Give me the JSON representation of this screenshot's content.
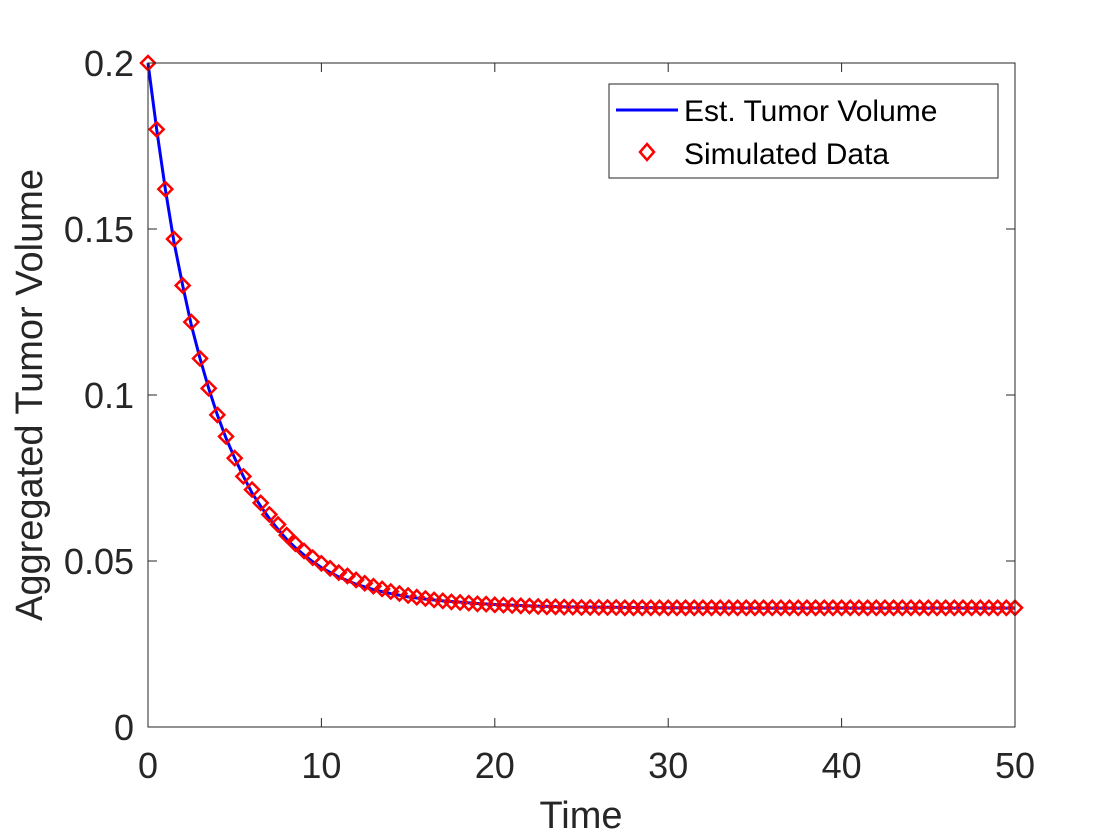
{
  "chart_data": {
    "type": "line",
    "title": "",
    "xlabel": "Time",
    "ylabel": "Aggregated Tumor Volume",
    "xlim": [
      0,
      50
    ],
    "ylim": [
      0,
      0.2
    ],
    "xticks": [
      0,
      10,
      20,
      30,
      40,
      50
    ],
    "yticks": [
      0,
      0.05,
      0.1,
      0.15,
      0.2
    ],
    "xtick_labels": [
      "0",
      "10",
      "20",
      "30",
      "40",
      "50"
    ],
    "ytick_labels": [
      "0",
      "0.05",
      "0.1",
      "0.15",
      "0.2"
    ],
    "grid": false,
    "legend_position": "top-right",
    "series": [
      {
        "name": "Est. Tumor Volume",
        "style": "line",
        "color": "#0000ff",
        "x": [
          0,
          0.5,
          1,
          1.5,
          2,
          2.5,
          3,
          3.5,
          4,
          4.5,
          5,
          5.5,
          6,
          6.5,
          7,
          7.5,
          8,
          8.5,
          9,
          9.5,
          10,
          11,
          12,
          13,
          14,
          15,
          16,
          17,
          18,
          19,
          20,
          22,
          24,
          26,
          28,
          30,
          35,
          40,
          45,
          50
        ],
        "y": [
          0.2,
          0.18,
          0.162,
          0.146,
          0.133,
          0.121,
          0.111,
          0.102,
          0.094,
          0.087,
          0.081,
          0.0755,
          0.0705,
          0.0665,
          0.0628,
          0.0595,
          0.0565,
          0.054,
          0.0518,
          0.0498,
          0.048,
          0.0452,
          0.043,
          0.0414,
          0.0402,
          0.0392,
          0.0385,
          0.038,
          0.0376,
          0.0372,
          0.0369,
          0.0365,
          0.0362,
          0.0361,
          0.036,
          0.0359,
          0.0358,
          0.0358,
          0.0358,
          0.0358
        ]
      },
      {
        "name": "Simulated Data",
        "style": "markers",
        "marker": "diamond",
        "color": "#ff0000",
        "x": [
          0,
          0.5,
          1,
          1.5,
          2,
          2.5,
          3,
          3.5,
          4,
          4.5,
          5,
          5.5,
          6,
          6.5,
          7,
          7.5,
          8,
          8.5,
          9,
          9.5,
          10,
          10.5,
          11,
          11.5,
          12,
          12.5,
          13,
          13.5,
          14,
          14.5,
          15,
          15.5,
          16,
          16.5,
          17,
          17.5,
          18,
          18.5,
          19,
          19.5,
          20,
          20.5,
          21,
          21.5,
          22,
          22.5,
          23,
          23.5,
          24,
          24.5,
          25,
          25.5,
          26,
          26.5,
          27,
          27.5,
          28,
          28.5,
          29,
          29.5,
          30,
          30.5,
          31,
          31.5,
          32,
          32.5,
          33,
          33.5,
          34,
          34.5,
          35,
          35.5,
          36,
          36.5,
          37,
          37.5,
          38,
          38.5,
          39,
          39.5,
          40,
          40.5,
          41,
          41.5,
          42,
          42.5,
          43,
          43.5,
          44,
          44.5,
          45,
          45.5,
          46,
          46.5,
          47,
          47.5,
          48,
          48.5,
          49,
          49.5,
          50
        ],
        "y": [
          0.2,
          0.18,
          0.162,
          0.147,
          0.133,
          0.122,
          0.111,
          0.102,
          0.094,
          0.0875,
          0.081,
          0.0755,
          0.0715,
          0.0675,
          0.064,
          0.061,
          0.0578,
          0.0552,
          0.053,
          0.051,
          0.0493,
          0.0478,
          0.0465,
          0.0455,
          0.0443,
          0.0433,
          0.0424,
          0.0416,
          0.0408,
          0.0402,
          0.0396,
          0.0391,
          0.0387,
          0.0383,
          0.038,
          0.0377,
          0.0375,
          0.0373,
          0.0371,
          0.037,
          0.0368,
          0.0367,
          0.0366,
          0.0365,
          0.0364,
          0.0363,
          0.0362,
          0.0362,
          0.0361,
          0.0361,
          0.036,
          0.036,
          0.036,
          0.036,
          0.036,
          0.0359,
          0.0359,
          0.0359,
          0.0359,
          0.0359,
          0.0359,
          0.0359,
          0.0359,
          0.0359,
          0.0359,
          0.0359,
          0.0359,
          0.0359,
          0.0359,
          0.0359,
          0.0359,
          0.0359,
          0.0359,
          0.0359,
          0.0359,
          0.0359,
          0.0359,
          0.0359,
          0.0359,
          0.0359,
          0.0359,
          0.0359,
          0.0359,
          0.0359,
          0.0359,
          0.0359,
          0.0359,
          0.0359,
          0.0359,
          0.0359,
          0.0359,
          0.0359,
          0.0359,
          0.0359,
          0.0359,
          0.0359,
          0.0359,
          0.0359,
          0.0359,
          0.0359,
          0.0359
        ]
      }
    ]
  }
}
